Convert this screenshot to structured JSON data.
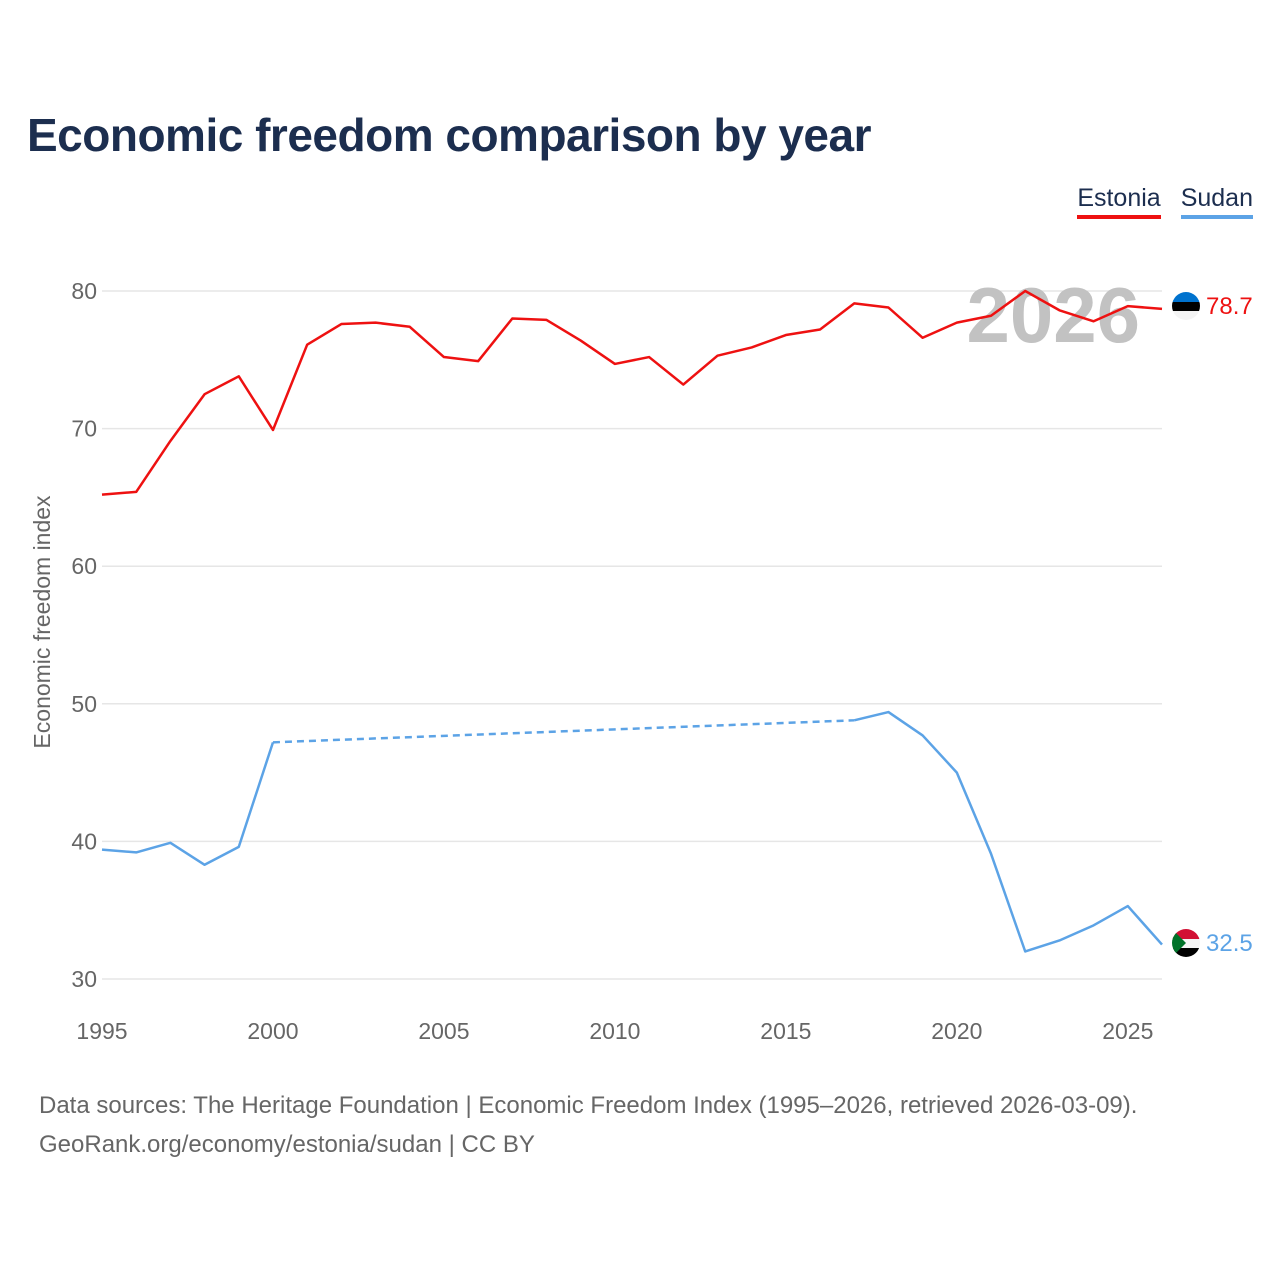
{
  "title": "Economic freedom comparison by year",
  "chart_data": {
    "type": "line",
    "title": "Economic freedom comparison by year",
    "ylabel": "Economic freedom index",
    "xlabel": "",
    "xlim": [
      1995,
      2026
    ],
    "ylim": [
      28,
      86
    ],
    "x_ticks": [
      1995,
      2000,
      2005,
      2010,
      2015,
      2020,
      2025
    ],
    "y_ticks": [
      30,
      40,
      50,
      60,
      70,
      80
    ],
    "year_watermark": "2026",
    "legend_position": "top-right",
    "series": [
      {
        "name": "Estonia",
        "color": "#ee1111",
        "end_label": "78.7",
        "points": [
          [
            1995,
            65.2
          ],
          [
            1996,
            65.4
          ],
          [
            1997,
            69.1
          ],
          [
            1998,
            72.5
          ],
          [
            1999,
            73.8
          ],
          [
            2000,
            69.9
          ],
          [
            2001,
            76.1
          ],
          [
            2002,
            77.6
          ],
          [
            2003,
            77.7
          ],
          [
            2004,
            77.4
          ],
          [
            2005,
            75.2
          ],
          [
            2006,
            74.9
          ],
          [
            2007,
            78.0
          ],
          [
            2008,
            77.9
          ],
          [
            2009,
            76.4
          ],
          [
            2010,
            74.7
          ],
          [
            2011,
            75.2
          ],
          [
            2012,
            73.2
          ],
          [
            2013,
            75.3
          ],
          [
            2014,
            75.9
          ],
          [
            2015,
            76.8
          ],
          [
            2016,
            77.2
          ],
          [
            2017,
            79.1
          ],
          [
            2018,
            78.8
          ],
          [
            2019,
            76.6
          ],
          [
            2020,
            77.7
          ],
          [
            2021,
            78.2
          ],
          [
            2022,
            80.0
          ],
          [
            2023,
            78.6
          ],
          [
            2024,
            77.8
          ],
          [
            2025,
            78.9
          ],
          [
            2026,
            78.7
          ]
        ]
      },
      {
        "name": "Sudan",
        "color": "#5ca3e6",
        "end_label": "32.5",
        "points": [
          [
            1995,
            39.4
          ],
          [
            1996,
            39.2
          ],
          [
            1997,
            39.9
          ],
          [
            1998,
            38.3
          ],
          [
            1999,
            39.6
          ],
          [
            2000,
            47.2
          ],
          [
            2017,
            48.8
          ],
          [
            2018,
            49.4
          ],
          [
            2019,
            47.7
          ],
          [
            2020,
            45.0
          ],
          [
            2021,
            39.1
          ],
          [
            2022,
            32.0
          ],
          [
            2023,
            32.8
          ],
          [
            2024,
            33.9
          ],
          [
            2025,
            35.3
          ],
          [
            2026,
            32.5
          ]
        ],
        "gap_segments": [
          [
            2000,
            2017
          ]
        ]
      }
    ]
  },
  "source": {
    "line1": "Data sources: The Heritage Foundation | Economic Freedom Index (1995–2026, retrieved 2026-03-09).",
    "line2": "GeoRank.org/economy/estonia/sudan | CC BY"
  }
}
